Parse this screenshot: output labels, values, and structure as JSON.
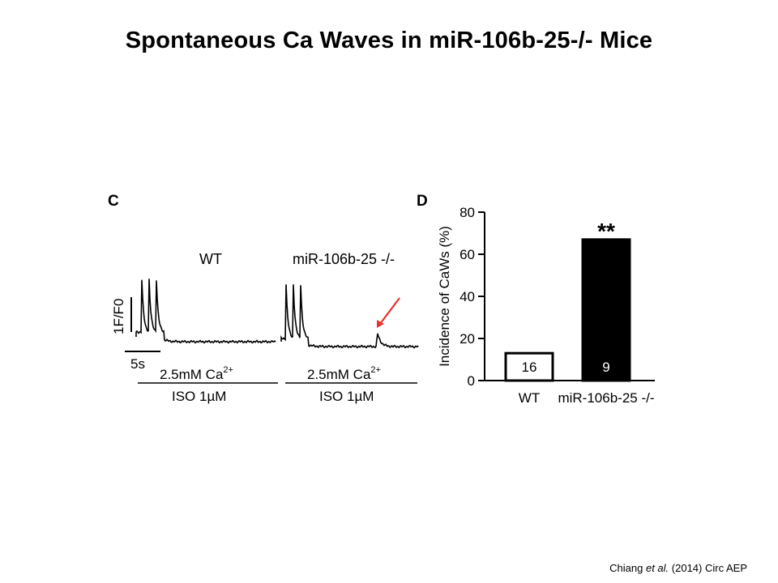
{
  "slide": {
    "title": "Spontaneous Ca Waves in miR-106b-25-/- Mice",
    "citation": {
      "author": "Chiang",
      "etal": "et al.",
      "year": "(2014)",
      "journal": "Circ AEP"
    }
  },
  "chart_data": [
    {
      "type": "line",
      "panel_label": "C",
      "description_labels": {
        "scale_y": "1F/F0",
        "scale_x": "5s"
      },
      "series": [
        {
          "name": "WT",
          "condition_top": "2.5mM Ca",
          "condition_top_sup": "2+",
          "condition_bottom": "ISO 1µM",
          "transients": 3,
          "spontaneous_wave": false
        },
        {
          "name": "miR-106b-25 -/-",
          "condition_top": "2.5mM Ca",
          "condition_top_sup": "2+",
          "condition_bottom": "ISO 1µM",
          "transients": 3,
          "spontaneous_wave": true
        }
      ],
      "annotation_color": "#e8322d"
    },
    {
      "type": "bar",
      "panel_label": "D",
      "categories": [
        "WT",
        "miR-106b-25 -/-"
      ],
      "values": [
        13,
        67
      ],
      "bar_labels": [
        "16",
        "9"
      ],
      "bar_fills": [
        "#ffffff",
        "#000000"
      ],
      "significance": "**",
      "ylabel": "Incidence of CaWs (%)",
      "ylim": [
        0,
        80
      ],
      "yticks": [
        "0",
        "20",
        "40",
        "60",
        "80"
      ]
    }
  ]
}
